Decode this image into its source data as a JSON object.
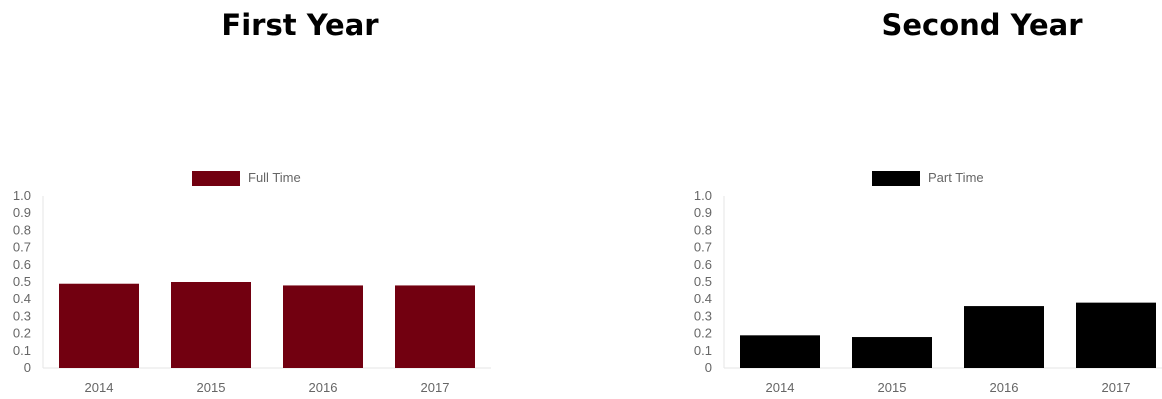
{
  "panels": [
    {
      "title": "First Year"
    },
    {
      "title": "Second Year"
    }
  ],
  "chart_data": [
    {
      "type": "bar",
      "categories": [
        "2014",
        "2015",
        "2016",
        "2017"
      ],
      "series": [
        {
          "name": "Full Time",
          "values": [
            0.49,
            0.5,
            0.48,
            0.48
          ],
          "color": "#720010"
        }
      ],
      "ylim": [
        0,
        1.0
      ],
      "yticks": [
        "0",
        "0.1",
        "0.2",
        "0.3",
        "0.4",
        "0.5",
        "0.6",
        "0.7",
        "0.8",
        "0.9",
        "1.0"
      ],
      "legend": "top-center",
      "grid": false
    },
    {
      "type": "bar",
      "categories": [
        "2014",
        "2015",
        "2016",
        "2017"
      ],
      "series": [
        {
          "name": "Part Time",
          "values": [
            0.19,
            0.18,
            0.36,
            0.38
          ],
          "color": "#000000"
        }
      ],
      "ylim": [
        0,
        1.0
      ],
      "yticks": [
        "0",
        "0.1",
        "0.2",
        "0.3",
        "0.4",
        "0.5",
        "0.6",
        "0.7",
        "0.8",
        "0.9",
        "1.0"
      ],
      "legend": "top-center",
      "grid": false
    }
  ]
}
